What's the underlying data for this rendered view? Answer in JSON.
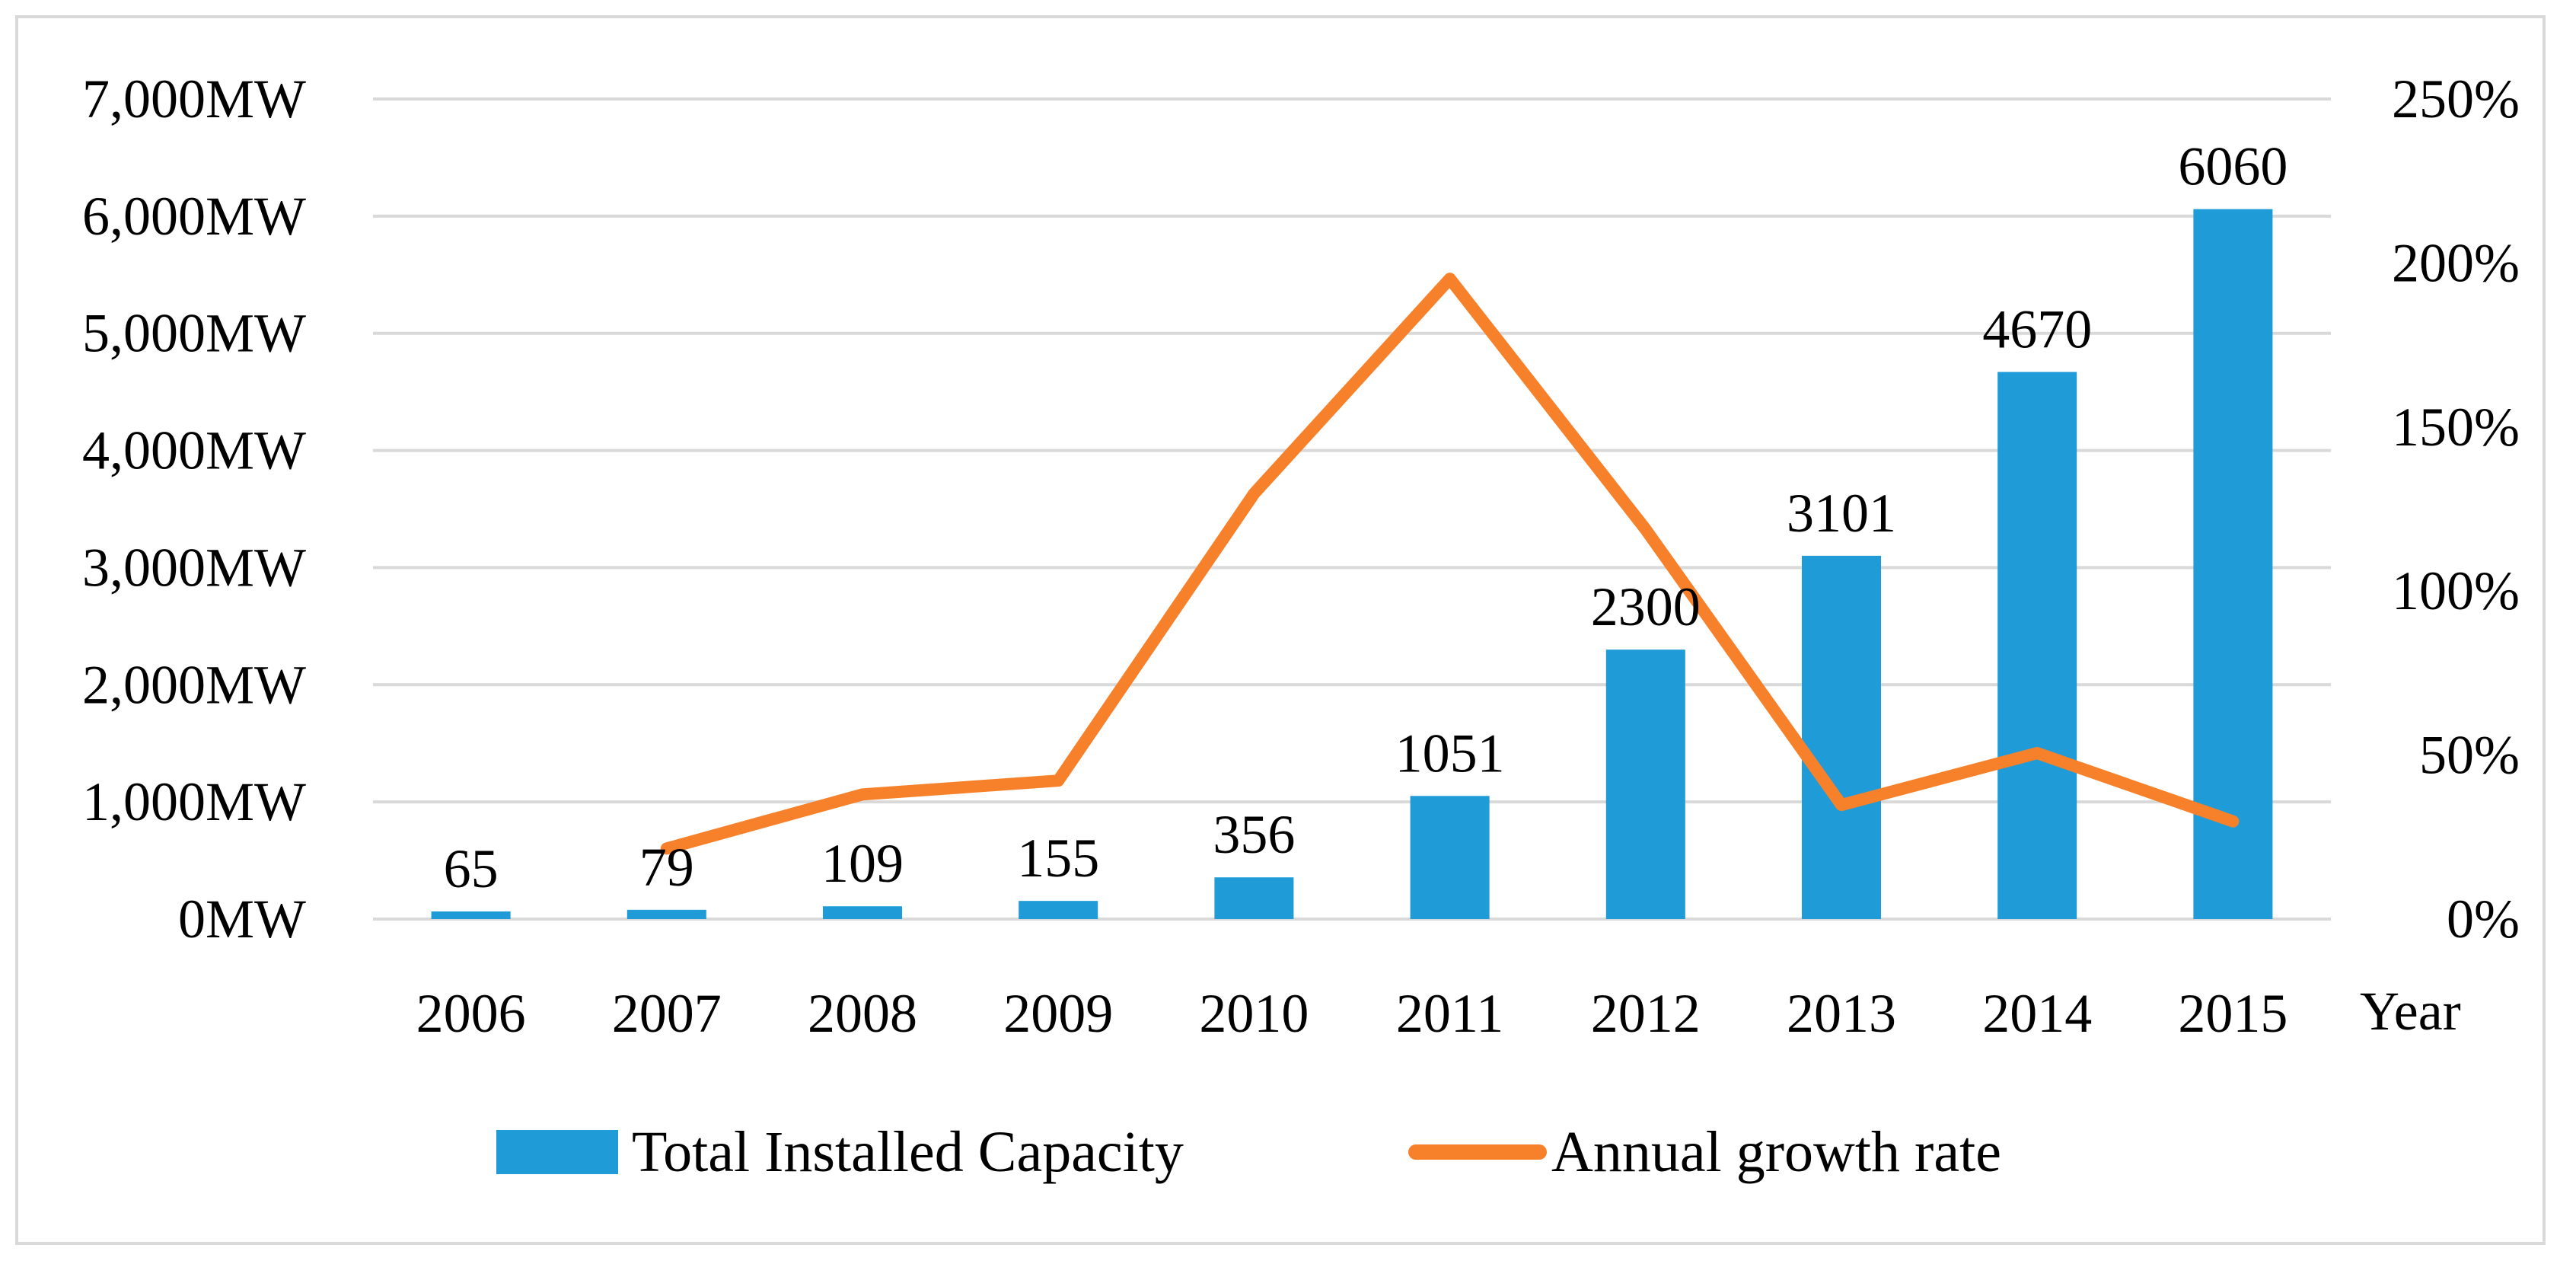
{
  "chart_data": {
    "type": "bar",
    "title": "",
    "xlabel": "Year",
    "categories": [
      "2006",
      "2007",
      "2008",
      "2009",
      "2010",
      "2011",
      "2012",
      "2013",
      "2014",
      "2015"
    ],
    "series": [
      {
        "name": "Total Installed Capacity",
        "type": "bar",
        "axis": "left",
        "color": "#1f9bd7",
        "values": [
          65,
          79,
          109,
          155,
          356,
          1051,
          2300,
          3101,
          4670,
          6060
        ],
        "data_labels": [
          "65",
          "79",
          "109",
          "155",
          "356",
          "1051",
          "2300",
          "3101",
          "4670",
          "6060"
        ]
      },
      {
        "name": "Annual growth rate",
        "type": "line",
        "axis": "right",
        "color": "#f7812a",
        "values": [
          null,
          21.5,
          38.0,
          42.2,
          129.7,
          195.2,
          118.8,
          34.8,
          50.6,
          29.8
        ]
      }
    ],
    "y_left": {
      "ylim": [
        0,
        7000
      ],
      "ticks": [
        0,
        1000,
        2000,
        3000,
        4000,
        5000,
        6000,
        7000
      ],
      "tick_labels": [
        "0MW",
        "1,000MW",
        "2,000MW",
        "3,000MW",
        "4,000MW",
        "5,000MW",
        "6,000MW",
        "7,000MW"
      ]
    },
    "y_right": {
      "ylim": [
        0,
        250
      ],
      "ticks": [
        0,
        50,
        100,
        150,
        200,
        250
      ],
      "tick_labels": [
        "0%",
        "50%",
        "100%",
        "150%",
        "200%",
        "250%"
      ]
    },
    "grid": true,
    "gridColor": "#d9d9d9",
    "legend_position": "bottom"
  }
}
